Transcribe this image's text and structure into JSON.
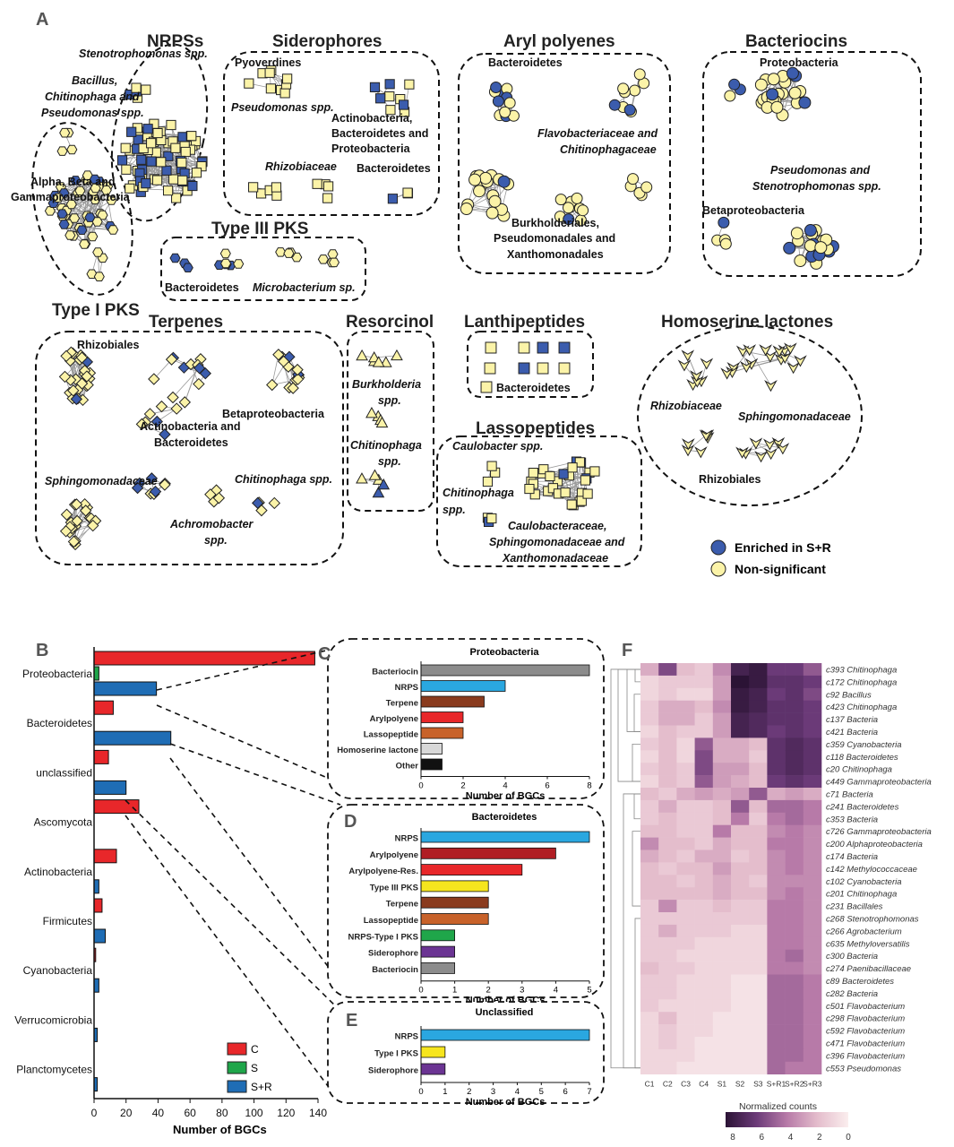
{
  "panelA": {
    "letter": "A",
    "categories": [
      {
        "title": "NRPSs",
        "labels": [
          {
            "text": "Stenotrophomonas spp.",
            "italic": true
          },
          {
            "text": "Bacillus,",
            "italic": true
          },
          {
            "text": "Chitinophaga and",
            "italic": true
          },
          {
            "text": "Pseudomonas spp.",
            "italic": true
          }
        ]
      },
      {
        "title": "Type I PKS",
        "labels": [
          {
            "text": "Alpha, Beta and",
            "italic": false
          },
          {
            "text": "Gammaproteobacteria",
            "italic": false
          }
        ]
      },
      {
        "title": "Siderophores",
        "labels": [
          {
            "text": "Pyoverdines",
            "italic": false
          },
          {
            "text": "Pseudomonas spp.",
            "italic": true
          },
          {
            "text": "Actinobacteria,",
            "italic": false
          },
          {
            "text": "Bacteroidetes and",
            "italic": false
          },
          {
            "text": "Proteobacteria",
            "italic": false
          },
          {
            "text": "Bacteroidetes",
            "italic": false
          },
          {
            "text": "Rhizobiaceae",
            "italic": true
          }
        ]
      },
      {
        "title": "Aryl polyenes",
        "labels": [
          {
            "text": "Bacteroidetes",
            "italic": false
          },
          {
            "text": "Flavobacteriaceae and",
            "italic": true
          },
          {
            "text": "Chitinophagaceae",
            "italic": true
          },
          {
            "text": "Burkholderiales,",
            "italic": false
          },
          {
            "text": "Pseudomonadales and",
            "italic": false
          },
          {
            "text": "Xanthomonadales",
            "italic": false
          }
        ]
      },
      {
        "title": "Bacteriocins",
        "labels": [
          {
            "text": "Proteobacteria",
            "italic": false
          },
          {
            "text": "Pseudomonas and",
            "italic": true
          },
          {
            "text": "Stenotrophomonas spp.",
            "italic": true
          },
          {
            "text": "Betaproteobacteria",
            "italic": false
          }
        ]
      },
      {
        "title": "Type III PKS",
        "labels": [
          {
            "text": "Bacteroidetes",
            "italic": false
          },
          {
            "text": "Microbacterium sp.",
            "italic": true
          }
        ]
      },
      {
        "title": "Terpenes",
        "labels": [
          {
            "text": "Rhizobiales",
            "italic": false
          },
          {
            "text": "Betaproteobacteria",
            "italic": false
          },
          {
            "text": "Actinobacteria and",
            "italic": false
          },
          {
            "text": "Bacteroidetes",
            "italic": false
          },
          {
            "text": "Sphingomonadaceae",
            "italic": true
          },
          {
            "text": "Chitinophaga spp.",
            "italic": true
          },
          {
            "text": "Achromobacter",
            "italic": true
          },
          {
            "text": "spp.",
            "italic": true
          }
        ]
      },
      {
        "title": "Resorcinol",
        "labels": [
          {
            "text": "Burkholderia",
            "italic": true
          },
          {
            "text": "spp.",
            "italic": true
          },
          {
            "text": "Chitinophaga",
            "italic": true
          },
          {
            "text": "spp.",
            "italic": true
          }
        ]
      },
      {
        "title": "Lanthipeptides",
        "labels": [
          {
            "text": "Bacteroidetes",
            "italic": false
          }
        ]
      },
      {
        "title": "Lassopeptides",
        "labels": [
          {
            "text": "Caulobacter spp.",
            "italic": true
          },
          {
            "text": "Chitinophaga",
            "italic": true
          },
          {
            "text": "spp.",
            "italic": true
          },
          {
            "text": "Caulobacteraceae,",
            "italic": true
          },
          {
            "text": "Sphingomonadaceae and",
            "italic": true
          },
          {
            "text": "Xanthomonadaceae",
            "italic": true
          }
        ]
      },
      {
        "title": "Homoserine lactones",
        "labels": [
          {
            "text": "Rhizobiaceae",
            "italic": true
          },
          {
            "text": "Sphingomonadaceae",
            "italic": true
          },
          {
            "text": "Rhizobiales",
            "italic": false
          }
        ]
      }
    ],
    "legend": [
      {
        "label": "Enriched in S+R",
        "color": "#3b5cad"
      },
      {
        "label": "Non-significant",
        "color": "#fbf3a8"
      }
    ]
  },
  "chart_data": [
    {
      "id": "B",
      "type": "bar",
      "orientation": "horizontal",
      "categories": [
        "Proteobacteria",
        "Bacteroidetes",
        "unclassified",
        "Ascomycota",
        "Actinobacteria",
        "Firmicutes",
        "Cyanobacteria",
        "Verrucomicrobia",
        "Planctomycetes"
      ],
      "series": [
        {
          "name": "C",
          "color": "#e8272a",
          "values": [
            138,
            12,
            9,
            28,
            14,
            5,
            1,
            0,
            0
          ]
        },
        {
          "name": "S",
          "color": "#1fa64a",
          "values": [
            3,
            0,
            0,
            0,
            0,
            0,
            0,
            0,
            0
          ]
        },
        {
          "name": "S+R",
          "color": "#1f6db5",
          "values": [
            39,
            48,
            20,
            0,
            3,
            7,
            3,
            2,
            2
          ]
        }
      ],
      "xlabel": "Number of BGCs",
      "xlim": [
        0,
        140
      ],
      "xticks": [
        0,
        20,
        40,
        60,
        80,
        100,
        120,
        140
      ]
    },
    {
      "id": "C",
      "type": "bar",
      "orientation": "horizontal",
      "title": "Proteobacteria",
      "categories": [
        "Bacteriocin",
        "NRPS",
        "Terpene",
        "Arylpolyene",
        "Lassopeptide",
        "Homoserine lactone",
        "Other"
      ],
      "values": [
        8,
        4,
        3,
        2,
        2,
        1,
        1
      ],
      "colors": [
        "#8c8c8c",
        "#2aa7e0",
        "#8a3b1e",
        "#e8272a",
        "#c8622a",
        "#d8d8d8",
        "#111111"
      ],
      "xlabel": "Number of BGCs",
      "xlim": [
        0,
        8
      ],
      "xticks": [
        0,
        2,
        4,
        6,
        8
      ]
    },
    {
      "id": "D",
      "type": "bar",
      "orientation": "horizontal",
      "title": "Bacteroidetes",
      "categories": [
        "NRPS",
        "Arylpolyene",
        "Arylpolyene-Res.",
        "Type III PKS",
        "Terpene",
        "Lassopeptide",
        "NRPS-Type I PKS",
        "Siderophore",
        "Bacteriocin"
      ],
      "values": [
        5,
        4,
        3,
        2,
        2,
        2,
        1,
        1,
        1
      ],
      "colors": [
        "#2aa7e0",
        "#b01e24",
        "#e8272a",
        "#f6e51e",
        "#8a3b1e",
        "#c8622a",
        "#1fa64a",
        "#6b3493",
        "#8c8c8c"
      ],
      "xlabel": "Number of BGCs",
      "xlim": [
        0,
        5
      ],
      "xticks": [
        0,
        1,
        2,
        3,
        4,
        5
      ]
    },
    {
      "id": "E",
      "type": "bar",
      "orientation": "horizontal",
      "title": "Unclassified",
      "categories": [
        "NRPS",
        "Type I PKS",
        "Siderophore"
      ],
      "values": [
        7,
        1,
        1
      ],
      "colors": [
        "#2aa7e0",
        "#f6e51e",
        "#6b3493"
      ],
      "xlabel": "Number of BGCs",
      "xlim": [
        0,
        7
      ],
      "xticks": [
        0,
        1,
        2,
        3,
        4,
        5,
        6,
        7
      ]
    },
    {
      "id": "F",
      "type": "heatmap",
      "columns": [
        "C1",
        "C2",
        "C3",
        "C4",
        "S1",
        "S2",
        "S3",
        "S+R1",
        "S+R2",
        "S+R3"
      ],
      "rows": [
        "c393 Chitinophaga",
        "c172 Chitinophaga",
        "c92 Bacillus",
        "c423 Chitinophaga",
        "c137 Bacteria",
        "c421 Bacteria",
        "c359 Cyanobacteria",
        "c118 Bacteroidetes",
        "c20 Chitinophaga",
        "c449 Gammaproteobacteria",
        "c71 Bacteria",
        "c241 Bacteroidetes",
        "c353 Bacteria",
        "c726 Gammaproteobacteria",
        "c200 Alphaproteobacteria",
        "c174 Bacteria",
        "c142 Methylococcaceae",
        "c102 Cyanobacteria",
        "c201 Chitinophaga",
        "c231 Bacillales",
        "c268 Stenotrophomonas",
        "c266 Agrobacterium",
        "c635 Methyloversatilis",
        "c300 Bacteria",
        "c274 Paenibacillaceae",
        "c89 Bacteroidetes",
        "c282 Bacteria",
        "c501 Flavobacterium",
        "c298 Flavobacterium",
        "c592 Flavobacterium",
        "c471 Flavobacterium",
        "c396 Flavobacterium",
        "c553 Pseudomonas"
      ],
      "values": [
        [
          2.5,
          5.5,
          2.0,
          1.5,
          3.5,
          7.5,
          8.0,
          6.0,
          6.0,
          5.0
        ],
        [
          1.0,
          1.5,
          1.5,
          1.5,
          3.0,
          8.5,
          8.0,
          6.5,
          6.5,
          6.0
        ],
        [
          1.0,
          1.5,
          1.0,
          1.0,
          3.0,
          8.0,
          7.5,
          6.0,
          6.5,
          5.5
        ],
        [
          1.5,
          2.5,
          2.5,
          2.0,
          3.5,
          8.0,
          7.5,
          6.5,
          6.5,
          6.0
        ],
        [
          1.5,
          2.5,
          2.5,
          1.5,
          3.0,
          7.5,
          7.0,
          6.5,
          6.5,
          6.0
        ],
        [
          1.0,
          2.0,
          1.5,
          1.5,
          3.0,
          7.5,
          7.0,
          6.0,
          6.5,
          6.0
        ],
        [
          1.5,
          2.0,
          1.0,
          5.0,
          2.5,
          2.5,
          2.0,
          6.5,
          7.0,
          6.5
        ],
        [
          1.0,
          2.0,
          1.0,
          5.5,
          2.5,
          2.5,
          1.5,
          6.5,
          7.0,
          6.5
        ],
        [
          1.5,
          2.0,
          1.5,
          5.5,
          3.0,
          3.0,
          2.0,
          6.5,
          7.0,
          6.5
        ],
        [
          1.0,
          2.0,
          1.5,
          5.0,
          3.0,
          2.5,
          2.0,
          6.0,
          6.5,
          6.0
        ],
        [
          2.0,
          1.5,
          2.5,
          3.0,
          2.5,
          3.0,
          5.0,
          2.5,
          3.0,
          2.5
        ],
        [
          1.5,
          2.5,
          1.5,
          1.5,
          2.0,
          5.0,
          2.0,
          4.5,
          4.5,
          4.0
        ],
        [
          1.5,
          2.0,
          1.5,
          1.5,
          2.0,
          4.0,
          1.5,
          4.0,
          4.5,
          4.0
        ],
        [
          2.0,
          2.0,
          1.5,
          1.5,
          4.0,
          2.0,
          2.0,
          3.5,
          4.0,
          3.5
        ],
        [
          3.5,
          2.0,
          2.0,
          1.5,
          2.5,
          2.0,
          2.0,
          4.0,
          4.0,
          3.5
        ],
        [
          2.5,
          2.0,
          1.5,
          2.5,
          2.5,
          1.5,
          2.0,
          3.5,
          4.0,
          3.5
        ],
        [
          2.0,
          1.5,
          2.0,
          2.0,
          3.0,
          2.0,
          2.0,
          3.5,
          4.0,
          3.5
        ],
        [
          2.0,
          2.0,
          1.5,
          2.0,
          2.5,
          2.0,
          1.5,
          3.5,
          3.5,
          3.5
        ],
        [
          2.0,
          2.0,
          2.0,
          2.0,
          2.5,
          2.0,
          2.0,
          3.5,
          4.0,
          3.5
        ],
        [
          1.5,
          3.5,
          1.5,
          1.5,
          2.0,
          1.5,
          1.5,
          4.0,
          4.0,
          3.5
        ],
        [
          1.5,
          1.5,
          1.5,
          1.5,
          1.5,
          1.5,
          1.5,
          4.0,
          4.0,
          3.5
        ],
        [
          1.5,
          2.5,
          1.5,
          1.5,
          1.5,
          1.0,
          1.0,
          4.0,
          4.0,
          3.5
        ],
        [
          1.5,
          1.5,
          1.5,
          1.0,
          1.0,
          1.0,
          1.0,
          4.0,
          4.0,
          3.5
        ],
        [
          1.5,
          1.5,
          1.0,
          1.0,
          1.0,
          1.0,
          1.0,
          4.0,
          4.5,
          3.5
        ],
        [
          2.0,
          1.5,
          1.5,
          1.0,
          1.0,
          1.0,
          1.0,
          4.0,
          4.0,
          3.5
        ],
        [
          1.5,
          1.5,
          1.0,
          1.0,
          1.0,
          0.5,
          0.5,
          4.5,
          4.5,
          4.0
        ],
        [
          1.5,
          1.5,
          1.0,
          1.0,
          1.0,
          0.5,
          0.5,
          4.5,
          4.5,
          4.0
        ],
        [
          1.5,
          1.0,
          1.0,
          1.0,
          1.0,
          0.5,
          0.5,
          4.5,
          4.5,
          4.0
        ],
        [
          1.0,
          2.0,
          1.0,
          1.0,
          0.5,
          0.5,
          0.5,
          4.5,
          4.5,
          4.0
        ],
        [
          1.0,
          1.5,
          1.0,
          1.0,
          0.5,
          0.5,
          0.5,
          4.5,
          4.5,
          4.0
        ],
        [
          1.0,
          1.5,
          1.0,
          0.5,
          0.5,
          0.5,
          0.5,
          4.5,
          4.5,
          4.0
        ],
        [
          1.0,
          1.0,
          1.0,
          0.5,
          0.5,
          0.5,
          0.5,
          4.5,
          4.5,
          4.0
        ],
        [
          1.0,
          1.0,
          0.5,
          0.5,
          0.5,
          0.5,
          0.5,
          4.5,
          4.0,
          4.0
        ]
      ],
      "colorbar": {
        "label": "Normalized counts",
        "ticks": [
          8,
          6,
          4,
          2,
          0
        ],
        "range": [
          0,
          8.5
        ]
      }
    }
  ],
  "panelLetters": {
    "B": "B",
    "C": "C",
    "D": "D",
    "E": "E",
    "F": "F"
  }
}
